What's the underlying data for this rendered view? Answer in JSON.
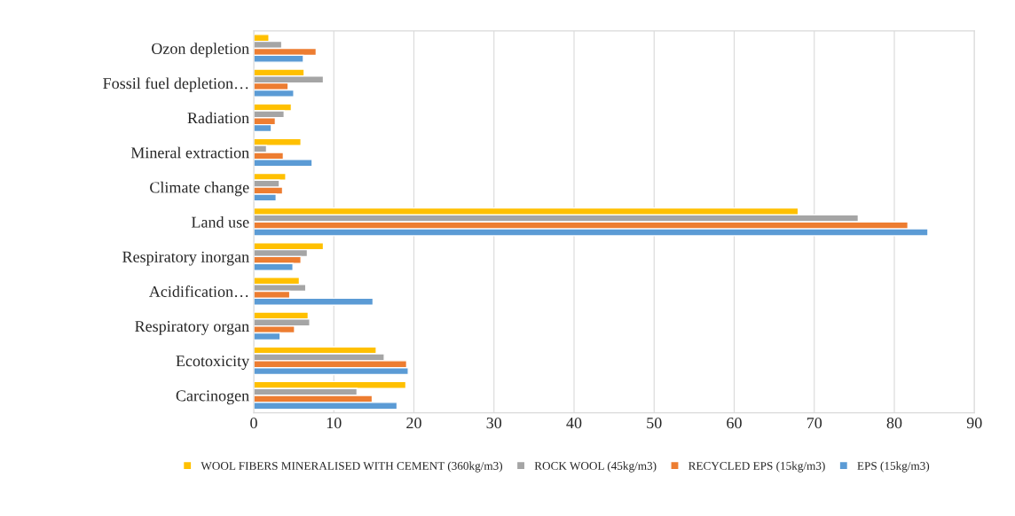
{
  "chart_data": {
    "type": "bar",
    "orientation": "horizontal",
    "categories": [
      "Ozon depletion",
      "Fossil fuel depletion…",
      "Radiation",
      "Mineral extraction",
      "Climate change",
      "Land use",
      "Respiratory inorgan",
      "Acidification…",
      "Respiratory organ",
      "Ecotoxicity",
      "Carcinogen"
    ],
    "series": [
      {
        "name": "WOOL FIBERS MINERALISED WITH CEMENT (360kg/m3)",
        "color": "#ffc000",
        "values": [
          1.9,
          6.3,
          4.7,
          5.9,
          4.0,
          68,
          8.7,
          5.7,
          6.8,
          15.3,
          19.0
        ]
      },
      {
        "name": "ROCK WOOL (45kg/m3)",
        "color": "#a5a5a5",
        "values": [
          3.5,
          8.7,
          3.8,
          1.6,
          3.2,
          75.5,
          6.7,
          6.5,
          7.0,
          16.3,
          12.9
        ]
      },
      {
        "name": "RECYCLED EPS (15kg/m3)",
        "color": "#ed7d31",
        "values": [
          7.8,
          4.3,
          2.7,
          3.7,
          3.6,
          81.7,
          5.9,
          4.5,
          5.1,
          19.1,
          14.8
        ]
      },
      {
        "name": "EPS (15kg/m3)",
        "color": "#5b9bd5",
        "values": [
          6.2,
          5.0,
          2.2,
          7.3,
          2.8,
          84.2,
          4.9,
          14.9,
          3.3,
          19.3,
          17.9
        ]
      }
    ],
    "xlim": [
      0,
      90
    ],
    "xticks": [
      0,
      10,
      20,
      30,
      40,
      50,
      60,
      70,
      80,
      90
    ],
    "grid": "x",
    "legend": "bottom"
  }
}
